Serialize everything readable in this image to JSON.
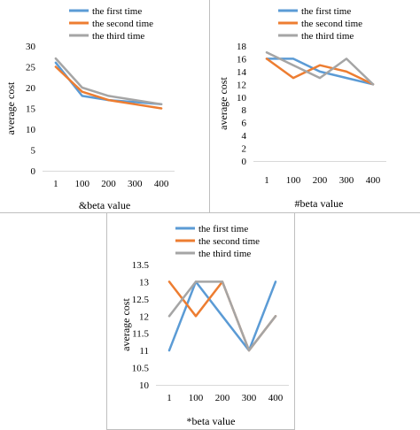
{
  "chart_data": [
    {
      "type": "line",
      "categories": [
        "1",
        "100",
        "200",
        "300",
        "400"
      ],
      "series": [
        {
          "name": "the first time",
          "color": "#5b9bd5",
          "values": [
            26,
            18,
            17,
            16.5,
            16
          ]
        },
        {
          "name": "the second time",
          "color": "#ed7d31",
          "values": [
            25,
            19,
            17,
            16,
            15
          ]
        },
        {
          "name": "the third time",
          "color": "#a5a5a5",
          "values": [
            27,
            20,
            18,
            17,
            16
          ]
        }
      ],
      "xlabel": "&beta value",
      "ylabel": "average cost",
      "ylim": [
        0,
        30
      ],
      "yticks": [
        "0",
        "5",
        "10",
        "15",
        "20",
        "25",
        "30"
      ],
      "legend": "top"
    },
    {
      "type": "line",
      "categories": [
        "1",
        "100",
        "200",
        "300",
        "400"
      ],
      "series": [
        {
          "name": "the first time",
          "color": "#5b9bd5",
          "values": [
            16,
            16,
            14,
            13,
            12
          ]
        },
        {
          "name": "the second time",
          "color": "#ed7d31",
          "values": [
            16,
            13,
            15,
            14,
            12
          ]
        },
        {
          "name": "the third time",
          "color": "#a5a5a5",
          "values": [
            17,
            15,
            13,
            16,
            12
          ]
        }
      ],
      "xlabel": "#beta value",
      "ylabel": "average cost",
      "ylim": [
        0,
        18
      ],
      "yticks": [
        "0",
        "2",
        "4",
        "6",
        "8",
        "10",
        "12",
        "14",
        "16",
        "18"
      ],
      "legend": "top"
    },
    {
      "type": "line",
      "categories": [
        "1",
        "100",
        "200",
        "300",
        "400"
      ],
      "series": [
        {
          "name": "the first time",
          "color": "#5b9bd5",
          "values": [
            11,
            13,
            12,
            11,
            13
          ]
        },
        {
          "name": "the second time",
          "color": "#ed7d31",
          "values": [
            13,
            12,
            13,
            11,
            12
          ]
        },
        {
          "name": "the third time",
          "color": "#a5a5a5",
          "values": [
            12,
            13,
            13,
            11,
            12
          ]
        }
      ],
      "xlabel": "*beta value",
      "ylabel": "average cost",
      "ylim": [
        10,
        13.5
      ],
      "yticks": [
        "10",
        "10.5",
        "11",
        "11.5",
        "12",
        "12.5",
        "13",
        "13.5"
      ],
      "legend": "top"
    }
  ]
}
